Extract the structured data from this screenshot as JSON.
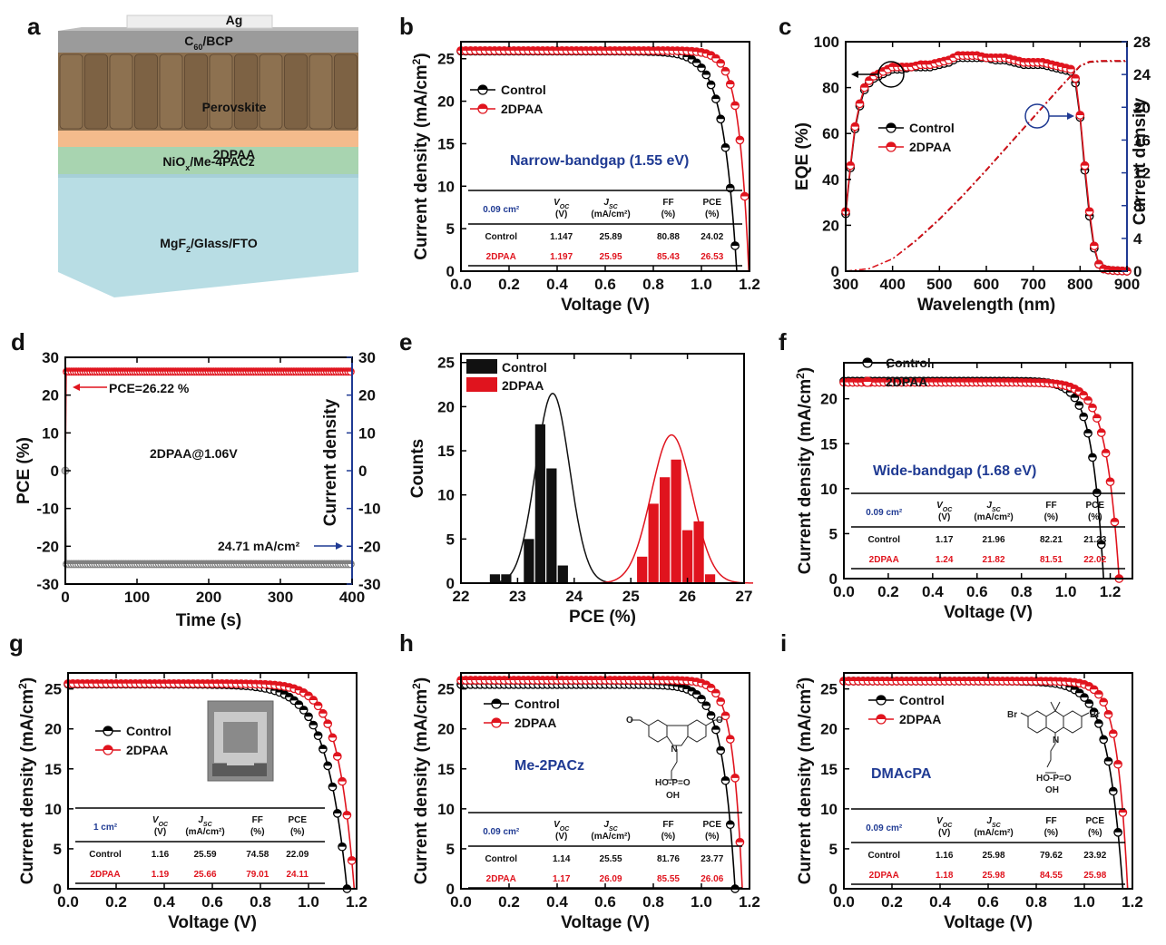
{
  "chart_data": [
    {
      "panel": "a",
      "type": "diagram",
      "layers": [
        {
          "label": "Ag",
          "color": "#eeeeee"
        },
        {
          "label": "C60/BCP",
          "color": "#9b9b9b"
        },
        {
          "label": "Perovskite",
          "color": "#8a6e4e"
        },
        {
          "label": "2DPAA",
          "color": "#f4bb8c"
        },
        {
          "label": "NiOx/Me-4PACz",
          "color": "#a8d4b0"
        },
        {
          "label": "MgF2/Glass/FTO",
          "color": "#b8dde4"
        }
      ]
    },
    {
      "panel": "b",
      "type": "line",
      "xlabel": "Voltage (V)",
      "ylabel": "Current density (mA/cm2)",
      "xlim": [
        0,
        1.2
      ],
      "ylim": [
        0,
        27
      ],
      "xticks": [
        "0.0",
        "0.2",
        "0.4",
        "0.6",
        "0.8",
        "1.0",
        "1.2"
      ],
      "yticks": [
        "0",
        "5",
        "10",
        "15",
        "20",
        "25"
      ],
      "annotation": "Narrow-bandgap (1.55 eV)",
      "legend": [
        "Control",
        "2DPAA"
      ],
      "series": [
        {
          "name": "Control",
          "color": "#000000",
          "jsc": 25.89,
          "voc": 1.147,
          "ff": 80.88
        },
        {
          "name": "2DPAA",
          "color": "#e0141e",
          "jsc": 25.95,
          "voc": 1.197,
          "ff": 85.43
        }
      ],
      "table": {
        "area": "0.09 cm²",
        "headers": [
          "Voc (V)",
          "Jsc (mA/cm²)",
          "FF (%)",
          "PCE (%)"
        ],
        "rows": [
          {
            "label": "Control",
            "values": [
              "1.147",
              "25.89",
              "80.88",
              "24.02"
            ]
          },
          {
            "label": "2DPAA",
            "values": [
              "1.197",
              "25.95",
              "85.43",
              "26.53"
            ]
          }
        ]
      }
    },
    {
      "panel": "c",
      "type": "line",
      "xlabel": "Wavelength (nm)",
      "ylabel": "EQE (%)",
      "y2label": "Current density",
      "xlim": [
        300,
        900
      ],
      "ylim": [
        0,
        100
      ],
      "y2lim": [
        0,
        28
      ],
      "xticks": [
        "300",
        "400",
        "500",
        "600",
        "700",
        "800",
        "900"
      ],
      "yticks": [
        "0",
        "20",
        "40",
        "60",
        "80",
        "100"
      ],
      "y2ticks": [
        "0",
        "4",
        "8",
        "12",
        "16",
        "20",
        "24",
        "28"
      ],
      "legend": [
        "Control",
        "2DPAA"
      ],
      "series": [
        {
          "name": "Control",
          "color": "#000000",
          "x": [
            300,
            310,
            320,
            330,
            340,
            350,
            360,
            370,
            380,
            390,
            400,
            420,
            440,
            460,
            480,
            500,
            520,
            540,
            560,
            580,
            600,
            620,
            640,
            660,
            680,
            700,
            720,
            740,
            760,
            780,
            790,
            800,
            810,
            820,
            830,
            840,
            850,
            860,
            870,
            880,
            890,
            900
          ],
          "y": [
            25,
            45,
            62,
            72,
            79,
            82,
            84,
            85,
            86,
            87,
            88,
            88,
            89,
            89,
            89,
            90,
            91,
            93,
            93,
            93,
            93,
            92,
            92,
            91,
            90,
            90,
            90,
            89,
            88,
            87,
            82,
            67,
            44,
            24,
            10,
            3,
            1,
            0.5,
            0.3,
            0.2,
            0.1,
            0
          ]
        },
        {
          "name": "2DPAA",
          "color": "#e0141e",
          "x": [
            300,
            310,
            320,
            330,
            340,
            350,
            360,
            370,
            380,
            390,
            400,
            420,
            440,
            460,
            480,
            500,
            520,
            540,
            560,
            580,
            600,
            620,
            640,
            660,
            680,
            700,
            720,
            740,
            760,
            780,
            790,
            800,
            810,
            820,
            830,
            840,
            850,
            860,
            870,
            880,
            890,
            900
          ],
          "y": [
            26,
            46,
            63,
            73,
            80,
            83,
            85,
            86,
            87,
            88,
            89,
            89,
            89,
            90,
            90,
            91,
            92,
            94,
            94,
            94,
            93,
            93,
            93,
            92,
            91,
            91,
            91,
            90,
            89,
            88,
            84,
            68,
            46,
            26,
            11,
            3,
            1,
            0.5,
            0.3,
            0.2,
            0.1,
            0
          ]
        },
        {
          "name": "Control integrated",
          "color": "#8b0000",
          "axis": "y2",
          "x": [
            300,
            350,
            400,
            450,
            500,
            550,
            600,
            650,
            700,
            750,
            800,
            820,
            850,
            900
          ],
          "y": [
            0,
            0.3,
            1.5,
            3.7,
            6.3,
            9.2,
            12.3,
            15.5,
            18.7,
            21.9,
            25.0,
            25.5,
            25.6,
            25.6
          ]
        },
        {
          "name": "2DPAA integrated",
          "color": "#e0141e",
          "axis": "y2",
          "x": [
            300,
            350,
            400,
            450,
            500,
            550,
            600,
            650,
            700,
            750,
            800,
            820,
            850,
            900
          ],
          "y": [
            0,
            0.3,
            1.5,
            3.8,
            6.4,
            9.3,
            12.4,
            15.6,
            18.8,
            22.0,
            25.1,
            25.6,
            25.7,
            25.7
          ]
        }
      ]
    },
    {
      "panel": "d",
      "type": "line",
      "xlabel": "Time (s)",
      "ylabel": "PCE (%)",
      "y2label": "Current density",
      "xlim": [
        0,
        400
      ],
      "ylim": [
        -30,
        30
      ],
      "y2lim": [
        -30,
        30
      ],
      "xticks": [
        "0",
        "100",
        "200",
        "300",
        "400"
      ],
      "yticks": [
        "-30",
        "-20",
        "-10",
        "0",
        "10",
        "20",
        "30"
      ],
      "y2ticks": [
        "-30",
        "-20",
        "-10",
        "0",
        "10",
        "20",
        "30"
      ],
      "annotations": [
        "PCE=26.22 %",
        "2DPAA@1.06V",
        "24.71 mA/cm²"
      ],
      "series": [
        {
          "name": "PCE",
          "color": "#e0141e",
          "value": 26.22
        },
        {
          "name": "Current density",
          "color": "#808080",
          "value": -24.71
        }
      ]
    },
    {
      "panel": "e",
      "type": "bar",
      "xlabel": "PCE (%)",
      "ylabel": "Counts",
      "xlim": [
        22,
        27
      ],
      "ylim": [
        0,
        26
      ],
      "xticks": [
        "22",
        "23",
        "24",
        "25",
        "26",
        "27"
      ],
      "yticks": [
        "0",
        "5",
        "10",
        "15",
        "20",
        "25"
      ],
      "legend": [
        "Control",
        "2DPAA"
      ],
      "series": [
        {
          "name": "Control",
          "color": "#111111",
          "x": [
            22.6,
            22.8,
            23.2,
            23.4,
            23.6,
            23.8
          ],
          "values": [
            1,
            1,
            5,
            18,
            13,
            2
          ],
          "fit_mean": 23.62,
          "fit_peak": 21.5,
          "fit_sigma": 0.3
        },
        {
          "name": "2DPAA",
          "color": "#e0141e",
          "x": [
            25.2,
            25.4,
            25.6,
            25.8,
            26.0,
            26.2,
            26.4
          ],
          "values": [
            3,
            9,
            12,
            14,
            6,
            7,
            1
          ],
          "fit_mean": 25.72,
          "fit_peak": 16.8,
          "fit_sigma": 0.36
        }
      ]
    },
    {
      "panel": "f",
      "type": "line",
      "xlabel": "Voltage (V)",
      "ylabel": "Current density (mA/cm2)",
      "xlim": [
        0,
        1.3
      ],
      "ylim": [
        0,
        24
      ],
      "xticks": [
        "0.0",
        "0.2",
        "0.4",
        "0.6",
        "0.8",
        "1.0",
        "1.2"
      ],
      "yticks": [
        "0",
        "5",
        "10",
        "15",
        "20"
      ],
      "annotation": "Wide-bandgap (1.68 eV)",
      "legend": [
        "Control",
        "2DPAA"
      ],
      "series": [
        {
          "name": "Control",
          "color": "#000000",
          "jsc": 21.96,
          "voc": 1.17,
          "ff": 82.21
        },
        {
          "name": "2DPAA",
          "color": "#e0141e",
          "jsc": 21.82,
          "voc": 1.24,
          "ff": 81.51
        }
      ],
      "table": {
        "area": "0.09 cm²",
        "headers": [
          "Voc (V)",
          "Jsc (mA/cm²)",
          "FF (%)",
          "PCE (%)"
        ],
        "rows": [
          {
            "label": "Control",
            "values": [
              "1.17",
              "21.96",
              "82.21",
              "21.23"
            ]
          },
          {
            "label": "2DPAA",
            "values": [
              "1.24",
              "21.82",
              "81.51",
              "22.02"
            ]
          }
        ]
      }
    },
    {
      "panel": "g",
      "type": "line",
      "xlabel": "Voltage (V)",
      "ylabel": "Current density (mA/cm2)",
      "xlim": [
        0,
        1.2
      ],
      "ylim": [
        0,
        27
      ],
      "xticks": [
        "0.0",
        "0.2",
        "0.4",
        "0.6",
        "0.8",
        "1.0",
        "1.2"
      ],
      "yticks": [
        "0",
        "5",
        "10",
        "15",
        "20",
        "25"
      ],
      "legend": [
        "Control",
        "2DPAA"
      ],
      "series": [
        {
          "name": "Control",
          "color": "#000000",
          "jsc": 25.59,
          "voc": 1.16,
          "ff": 74.58
        },
        {
          "name": "2DPAA",
          "color": "#e0141e",
          "jsc": 25.66,
          "voc": 1.19,
          "ff": 79.01
        }
      ],
      "table": {
        "area": "1 cm²",
        "headers": [
          "Voc (V)",
          "Jsc (mA/cm²)",
          "FF (%)",
          "PCE (%)"
        ],
        "rows": [
          {
            "label": "Control",
            "values": [
              "1.16",
              "25.59",
              "74.58",
              "22.09"
            ]
          },
          {
            "label": "2DPAA",
            "values": [
              "1.19",
              "25.66",
              "79.01",
              "24.11"
            ]
          }
        ]
      }
    },
    {
      "panel": "h",
      "type": "line",
      "xlabel": "Voltage (V)",
      "ylabel": "Current density (mA/cm2)",
      "xlim": [
        0,
        1.2
      ],
      "ylim": [
        0,
        27
      ],
      "xticks": [
        "0.0",
        "0.2",
        "0.4",
        "0.6",
        "0.8",
        "1.0",
        "1.2"
      ],
      "yticks": [
        "0",
        "5",
        "10",
        "15",
        "20",
        "25"
      ],
      "annotation": "Me-2PACz",
      "legend": [
        "Control",
        "2DPAA"
      ],
      "series": [
        {
          "name": "Control",
          "color": "#000000",
          "jsc": 25.55,
          "voc": 1.14,
          "ff": 81.76
        },
        {
          "name": "2DPAA",
          "color": "#e0141e",
          "jsc": 26.09,
          "voc": 1.17,
          "ff": 85.55
        }
      ],
      "table": {
        "area": "0.09 cm²",
        "headers": [
          "Voc (V)",
          "Jsc (mA/cm²)",
          "FF (%)",
          "PCE (%)"
        ],
        "rows": [
          {
            "label": "Control",
            "values": [
              "1.14",
              "25.55",
              "81.76",
              "23.77"
            ]
          },
          {
            "label": "2DPAA",
            "values": [
              "1.17",
              "26.09",
              "85.55",
              "26.06"
            ]
          }
        ]
      }
    },
    {
      "panel": "i",
      "type": "line",
      "xlabel": "Voltage (V)",
      "ylabel": "Current density (mA/cm2)",
      "xlim": [
        0,
        1.2
      ],
      "ylim": [
        0,
        27
      ],
      "xticks": [
        "0.0",
        "0.2",
        "0.4",
        "0.6",
        "0.8",
        "1.0",
        "1.2"
      ],
      "yticks": [
        "0",
        "5",
        "10",
        "15",
        "20",
        "25"
      ],
      "annotation": "DMAcPA",
      "legend": [
        "Control",
        "2DPAA"
      ],
      "series": [
        {
          "name": "Control",
          "color": "#000000",
          "jsc": 25.98,
          "voc": 1.16,
          "ff": 79.62
        },
        {
          "name": "2DPAA",
          "color": "#e0141e",
          "jsc": 25.98,
          "voc": 1.18,
          "ff": 84.55
        }
      ],
      "table": {
        "area": "0.09 cm²",
        "headers": [
          "Voc (V)",
          "Jsc (mA/cm²)",
          "FF (%)",
          "PCE (%)"
        ],
        "rows": [
          {
            "label": "Control",
            "values": [
              "1.16",
              "25.98",
              "79.62",
              "23.92"
            ]
          },
          {
            "label": "2DPAA",
            "values": [
              "1.18",
              "25.98",
              "84.55",
              "25.98"
            ]
          }
        ]
      }
    }
  ]
}
